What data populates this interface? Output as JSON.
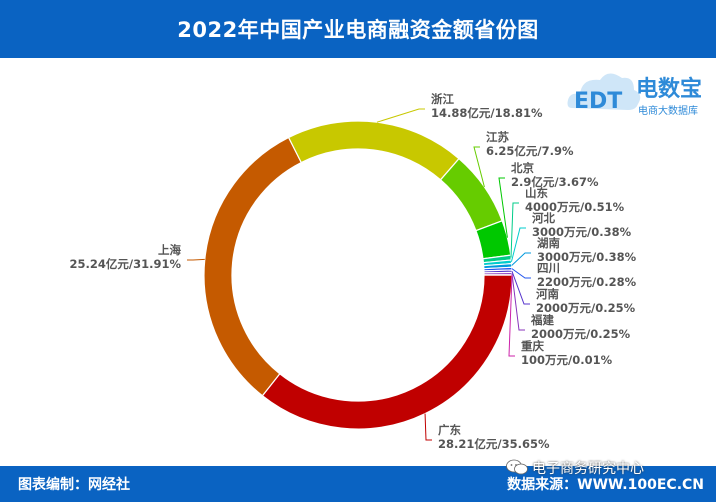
{
  "header": {
    "title": "2022年中国产业电商融资金额省份图"
  },
  "footer": {
    "credit": "图表编制：网经社",
    "source": "数据来源：WWW.100EC.CN",
    "wechat": "电子商务研究中心"
  },
  "logo": {
    "brand": "电数宝",
    "tagline": "电商大数据库",
    "mark": "EDT"
  },
  "chart_data": {
    "type": "pie",
    "variant": "donut",
    "slices": [
      {
        "name": "广东",
        "value": 28.21,
        "label": "28.21亿元/35.65%",
        "color": "#c00000"
      },
      {
        "name": "上海",
        "value": 25.24,
        "label": "25.24亿元/31.91%",
        "color": "#c55a00"
      },
      {
        "name": "浙江",
        "value": 14.88,
        "label": "14.88亿元/18.81%",
        "color": "#c8c800"
      },
      {
        "name": "江苏",
        "value": 6.25,
        "label": "6.25亿元/7.9%",
        "color": "#66cc00"
      },
      {
        "name": "北京",
        "value": 2.9,
        "label": "2.9亿元/3.67%",
        "color": "#00c800"
      },
      {
        "name": "山东",
        "value": 0.4,
        "label": "4000万元/0.51%",
        "color": "#00cc88"
      },
      {
        "name": "河北",
        "value": 0.3,
        "label": "3000万元/0.38%",
        "color": "#00cccc"
      },
      {
        "name": "湖南",
        "value": 0.3,
        "label": "3000万元/0.38%",
        "color": "#0099dd"
      },
      {
        "name": "四川",
        "value": 0.22,
        "label": "2200万元/0.28%",
        "color": "#2255ee"
      },
      {
        "name": "河南",
        "value": 0.2,
        "label": "2000万元/0.25%",
        "color": "#5533cc"
      },
      {
        "name": "福建",
        "value": 0.2,
        "label": "2000万元/0.25%",
        "color": "#8833bb"
      },
      {
        "name": "重庆",
        "value": 0.01,
        "label": "100万元/0.01%",
        "color": "#cc22aa"
      }
    ]
  }
}
